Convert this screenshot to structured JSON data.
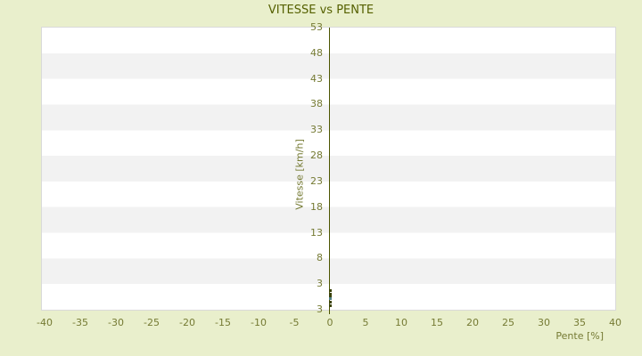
{
  "page": {
    "background": "#e9efcc"
  },
  "chart_data": {
    "type": "scatter",
    "title": "VITESSE vs PENTE",
    "xlabel": "Pente [%]",
    "ylabel": "Vitesse [km/h]",
    "xlim": [
      -40,
      40
    ],
    "ylim": [
      -2,
      53
    ],
    "x_tick_labels": [
      "-40",
      "-35",
      "-30",
      "-25",
      "-20",
      "-15",
      "-10",
      "-5",
      "0",
      "5",
      "10",
      "15",
      "20",
      "25",
      "30",
      "35",
      "40"
    ],
    "y_tick_labels": [
      "53",
      "48",
      "43",
      "38",
      "33",
      "28",
      "23",
      "18",
      "13",
      "8",
      "3",
      "3"
    ],
    "grid": "horizontal-alternating-bands",
    "legend": "none",
    "axis_line_at_x": 0,
    "series": [
      {
        "name": "vitesse-points",
        "marker": "square",
        "color": "#3a4208",
        "points": [
          {
            "x": 0,
            "y": 1.9
          },
          {
            "x": 0,
            "y": 1.2
          },
          {
            "x": 0,
            "y": 0.8
          },
          {
            "x": 0,
            "y": -0.5
          },
          {
            "x": 0,
            "y": -1.1
          }
        ]
      },
      {
        "name": "highlighted-point",
        "marker": "square",
        "color": "#4e7d82",
        "points": [
          {
            "x": 0,
            "y": 0.3
          }
        ]
      }
    ],
    "colors": {
      "band_light": "#ffffff",
      "band_dark": "#f2f2f2",
      "plot_border": "#d9d9d9",
      "axis_line": "#4b5400",
      "tick_text": "#757a33",
      "title_text": "#556000"
    }
  }
}
